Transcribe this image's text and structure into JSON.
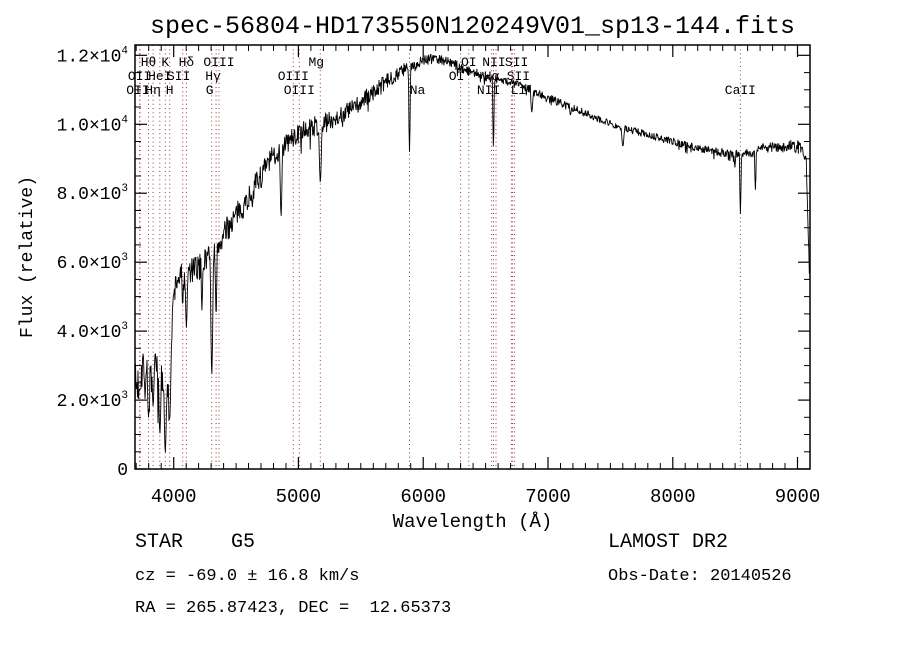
{
  "title": "spec-56804-HD173550N120249V01_sp13-144.fits",
  "axes": {
    "x_label": "Wavelength (Å)",
    "y_label": "Flux (relative)",
    "x_range": [
      3690,
      9100
    ],
    "y_range": [
      0,
      12300
    ],
    "x_major_ticks": [
      {
        "value": 4000,
        "label": "4000"
      },
      {
        "value": 5000,
        "label": "5000"
      },
      {
        "value": 6000,
        "label": "6000"
      },
      {
        "value": 7000,
        "label": "7000"
      },
      {
        "value": 8000,
        "label": "8000"
      },
      {
        "value": 9000,
        "label": "9000"
      }
    ],
    "x_minor_step": 100,
    "y_major_ticks": [
      {
        "value": 0,
        "base": "0",
        "exp": ""
      },
      {
        "value": 2000,
        "base": "2.0×10",
        "exp": "3"
      },
      {
        "value": 4000,
        "base": "4.0×10",
        "exp": "3"
      },
      {
        "value": 6000,
        "base": "6.0×10",
        "exp": "3"
      },
      {
        "value": 8000,
        "base": "8.0×10",
        "exp": "3"
      },
      {
        "value": 10000,
        "base": "1.0×10",
        "exp": "4"
      },
      {
        "value": 12000,
        "base": "1.2×10",
        "exp": "4"
      }
    ],
    "y_minor_step": 500
  },
  "spectral_lines": {
    "marker_color": "#a03333",
    "label_rows_y": {
      "1": 66,
      "2": 80,
      "3": 94
    },
    "labels": [
      {
        "text": "Hθ",
        "wavelength": 3798,
        "row": 1,
        "dx": 0
      },
      {
        "text": "K",
        "wavelength": 3933,
        "row": 1,
        "dx": 0
      },
      {
        "text": "Hδ",
        "wavelength": 4102,
        "row": 1,
        "dx": 0
      },
      {
        "text": "OIII",
        "wavelength": 4363,
        "row": 1,
        "dx": 0
      },
      {
        "text": "Mg",
        "wavelength": 5175,
        "row": 1,
        "dx": -4
      },
      {
        "text": "OI",
        "wavelength": 6365,
        "row": 1,
        "dx": 0
      },
      {
        "text": "NII",
        "wavelength": 6583,
        "row": 1,
        "dx": -2
      },
      {
        "text": "SII",
        "wavelength": 6716,
        "row": 1,
        "dx": 4
      },
      {
        "text": "OII",
        "wavelength": 3727,
        "row": 2,
        "dx": 0
      },
      {
        "text": "HeI",
        "wavelength": 3889,
        "row": 2,
        "dx": 0
      },
      {
        "text": "SII",
        "wavelength": 4072,
        "row": 2,
        "dx": -4
      },
      {
        "text": "Hγ",
        "wavelength": 4340,
        "row": 2,
        "dx": -3
      },
      {
        "text": "OIII",
        "wavelength": 4959,
        "row": 2,
        "dx": 0
      },
      {
        "text": "OI",
        "wavelength": 6300,
        "row": 2,
        "dx": -4
      },
      {
        "text": "Hα",
        "wavelength": 6563,
        "row": 2,
        "dx": -2
      },
      {
        "text": "SII",
        "wavelength": 6731,
        "row": 2,
        "dx": 4
      },
      {
        "text": "OII",
        "wavelength": 3730,
        "row": 3,
        "dx": -2
      },
      {
        "text": "Hη",
        "wavelength": 3835,
        "row": 3,
        "dx": 0
      },
      {
        "text": "H",
        "wavelength": 3968,
        "row": 3,
        "dx": 0
      },
      {
        "text": "G",
        "wavelength": 4305,
        "row": 3,
        "dx": -2
      },
      {
        "text": "OIII",
        "wavelength": 5007,
        "row": 3,
        "dx": 0
      },
      {
        "text": "Na",
        "wavelength": 5890,
        "row": 3,
        "dx": 8
      },
      {
        "text": "NII",
        "wavelength": 6548,
        "row": 3,
        "dx": -3
      },
      {
        "text": "Li",
        "wavelength": 6707,
        "row": 3,
        "dx": 7
      },
      {
        "text": "CaII",
        "wavelength": 8542,
        "row": 3,
        "dx": 0
      }
    ]
  },
  "chart_data": {
    "type": "line",
    "title": "spec-56804-HD173550N120249V01_sp13-144.fits",
    "xlabel": "Wavelength (Å)",
    "ylabel": "Flux (relative)",
    "xlim": [
      3690,
      9100
    ],
    "ylim": [
      0,
      12300
    ],
    "grid": false,
    "legend": false,
    "series": [
      {
        "name": "flux",
        "color": "#000000",
        "sample_step_angstrom": 4,
        "noise_seed": 7,
        "continuum_anchors": [
          [
            3690,
            2300
          ],
          [
            3720,
            2500
          ],
          [
            3750,
            3100
          ],
          [
            3780,
            2900
          ],
          [
            3810,
            2700
          ],
          [
            3845,
            3000
          ],
          [
            3870,
            2900
          ],
          [
            3910,
            2800
          ],
          [
            3950,
            2500
          ],
          [
            3975,
            2900
          ],
          [
            3990,
            4300
          ],
          [
            4005,
            5200
          ],
          [
            4030,
            5500
          ],
          [
            4060,
            5600
          ],
          [
            4090,
            5500
          ],
          [
            4130,
            5700
          ],
          [
            4170,
            5800
          ],
          [
            4210,
            5850
          ],
          [
            4250,
            6050
          ],
          [
            4290,
            6300
          ],
          [
            4330,
            6200
          ],
          [
            4370,
            6550
          ],
          [
            4420,
            6900
          ],
          [
            4470,
            7200
          ],
          [
            4520,
            7450
          ],
          [
            4570,
            7700
          ],
          [
            4620,
            8000
          ],
          [
            4670,
            8350
          ],
          [
            4720,
            8650
          ],
          [
            4770,
            8950
          ],
          [
            4820,
            9150
          ],
          [
            4870,
            9300
          ],
          [
            4920,
            9500
          ],
          [
            4970,
            9650
          ],
          [
            5020,
            9750
          ],
          [
            5070,
            9850
          ],
          [
            5120,
            9950
          ],
          [
            5170,
            9900
          ],
          [
            5220,
            10050
          ],
          [
            5270,
            10150
          ],
          [
            5330,
            10250
          ],
          [
            5400,
            10400
          ],
          [
            5470,
            10550
          ],
          [
            5540,
            10750
          ],
          [
            5610,
            10950
          ],
          [
            5680,
            11150
          ],
          [
            5750,
            11350
          ],
          [
            5820,
            11550
          ],
          [
            5880,
            11650
          ],
          [
            5940,
            11750
          ],
          [
            6000,
            11880
          ],
          [
            6060,
            11950
          ],
          [
            6120,
            11900
          ],
          [
            6180,
            11850
          ],
          [
            6240,
            11750
          ],
          [
            6300,
            11650
          ],
          [
            6360,
            11550
          ],
          [
            6420,
            11500
          ],
          [
            6480,
            11400
          ],
          [
            6540,
            11350
          ],
          [
            6600,
            11300
          ],
          [
            6660,
            11250
          ],
          [
            6720,
            11200
          ],
          [
            6780,
            11150
          ],
          [
            6840,
            11050
          ],
          [
            6900,
            10950
          ],
          [
            6960,
            10850
          ],
          [
            7050,
            10700
          ],
          [
            7150,
            10550
          ],
          [
            7250,
            10400
          ],
          [
            7350,
            10250
          ],
          [
            7450,
            10100
          ],
          [
            7550,
            9950
          ],
          [
            7650,
            9850
          ],
          [
            7750,
            9750
          ],
          [
            7850,
            9650
          ],
          [
            7950,
            9550
          ],
          [
            8050,
            9450
          ],
          [
            8150,
            9350
          ],
          [
            8250,
            9280
          ],
          [
            8350,
            9220
          ],
          [
            8450,
            9150
          ],
          [
            8550,
            9150
          ],
          [
            8650,
            9200
          ],
          [
            8750,
            9400
          ],
          [
            8820,
            9350
          ],
          [
            8880,
            9300
          ],
          [
            8940,
            9400
          ],
          [
            9000,
            9350
          ],
          [
            9040,
            9250
          ],
          [
            9070,
            8800
          ],
          [
            9096,
            5600
          ]
        ],
        "absorption_dips": [
          [
            3798,
            1500,
            11
          ],
          [
            3835,
            1800,
            10
          ],
          [
            3889,
            1000,
            12
          ],
          [
            3933,
            450,
            13
          ],
          [
            3968,
            1400,
            11
          ],
          [
            4072,
            4700,
            7
          ],
          [
            4102,
            4100,
            10
          ],
          [
            4226,
            4600,
            8
          ],
          [
            4305,
            2700,
            13
          ],
          [
            4340,
            4400,
            9
          ],
          [
            4861,
            7300,
            11
          ],
          [
            5175,
            8300,
            13
          ],
          [
            5890,
            9200,
            9
          ],
          [
            6563,
            9300,
            8
          ],
          [
            6870,
            10350,
            12
          ],
          [
            7180,
            10250,
            8
          ],
          [
            7600,
            9350,
            13
          ],
          [
            8498,
            8750,
            7
          ],
          [
            8542,
            7400,
            8
          ],
          [
            8662,
            8100,
            8
          ]
        ],
        "noise_profile": [
          [
            3690,
            750
          ],
          [
            3960,
            750
          ],
          [
            4000,
            420
          ],
          [
            4300,
            400
          ],
          [
            4600,
            350
          ],
          [
            5000,
            310
          ],
          [
            5400,
            280
          ],
          [
            5700,
            240
          ],
          [
            5900,
            170
          ],
          [
            6200,
            150
          ],
          [
            6600,
            130
          ],
          [
            7000,
            115
          ],
          [
            7600,
            105
          ],
          [
            8200,
            115
          ],
          [
            8800,
            130
          ],
          [
            9096,
            220
          ]
        ]
      }
    ]
  },
  "footer": {
    "class_line": "STAR    G5",
    "survey": "LAMOST DR2",
    "cz_line": "cz = -69.0 ± 16.8 km/s",
    "obs_date_line": "Obs-Date: 20140526",
    "radec_line": "RA = 265.87423, DEC =  12.65373"
  }
}
